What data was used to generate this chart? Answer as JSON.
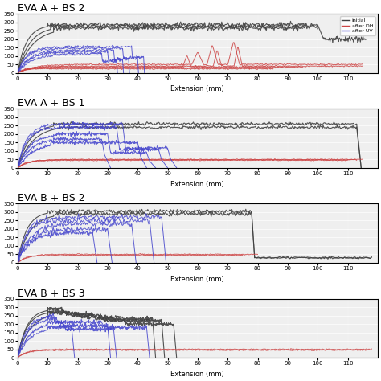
{
  "titles": [
    "EVA A + BS 2",
    "EVA A + BS 1",
    "EVA B + BS 2",
    "EVA B + BS 3"
  ],
  "xlabel": "Extension (mm)",
  "colors": {
    "initial": "#404040",
    "after_DH": "#cc4444",
    "after_UV": "#4444cc"
  },
  "legend_labels": [
    "initial",
    "after DH",
    "after UV"
  ],
  "xlim": [
    0,
    120
  ],
  "ylim": [
    0,
    350
  ],
  "yticks": [
    0,
    50,
    100,
    150,
    200,
    250,
    300,
    350
  ],
  "xticks": [
    0,
    10,
    20,
    30,
    40,
    50,
    60,
    70,
    80,
    90,
    100,
    110
  ],
  "title_fontsize": 9,
  "axis_fontsize": 6,
  "tick_fontsize": 5,
  "figsize": [
    4.74,
    4.74
  ],
  "dpi": 100
}
